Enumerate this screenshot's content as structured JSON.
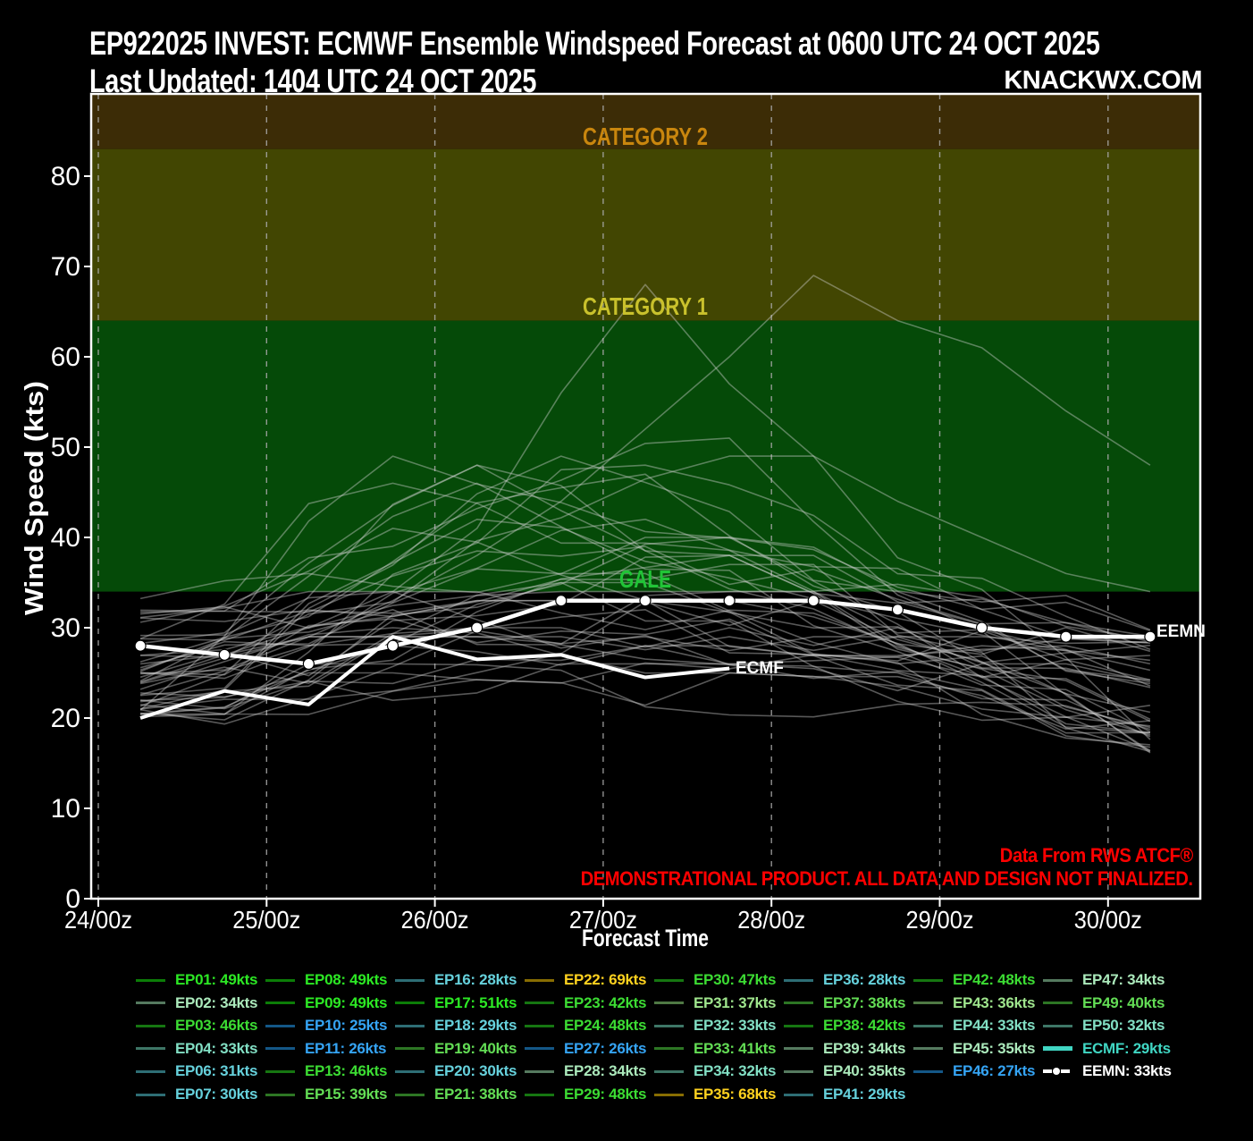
{
  "header": {
    "title_line1": "EP922025 INVEST: ECMWF Ensemble Windspeed Forecast at 0600 UTC 24 OCT 2025",
    "title_line2": "Last Updated: 1404 UTC 24 OCT 2025",
    "brand": "KNACKWX.COM"
  },
  "chart": {
    "y_axis": {
      "label": "Wind Speed (kts)",
      "ticks": [
        0,
        10,
        20,
        30,
        40,
        50,
        60,
        70,
        80
      ]
    },
    "x_axis": {
      "label": "Forecast Time",
      "ticks": [
        "24/00z",
        "25/00z",
        "26/00z",
        "27/00z",
        "28/00z",
        "29/00z",
        "30/00z"
      ]
    },
    "bands": [
      {
        "name": "category-2",
        "label": "CATEGORY 2",
        "label_color": "#c9860e",
        "fill": "#3c2c06",
        "from_kts": 83,
        "to_kts": 89.2
      },
      {
        "name": "category-1",
        "label": "CATEGORY 1",
        "label_color": "#c9c12c",
        "fill": "#424602",
        "from_kts": 64,
        "to_kts": 83
      },
      {
        "name": "gale",
        "label": "GALE",
        "label_color": "#21c437",
        "fill": "#054a08",
        "from_kts": 34,
        "to_kts": 64
      }
    ],
    "disclaimer": {
      "line1": "Data From RWS ATCF®",
      "line2": "DEMONSTRATIONAL PRODUCT. ALL DATA AND DESIGN NOT FINALIZED.",
      "color": "#ff0000"
    }
  },
  "chart_data": {
    "type": "line",
    "title": "EP922025 INVEST: ECMWF Ensemble Windspeed Forecast at 0600 UTC 24 OCT 2025",
    "xlabel": "Forecast Time",
    "ylabel": "Wind Speed (kts)",
    "ylim": [
      0,
      89.2
    ],
    "xtick_labels": [
      "24/00z",
      "25/00z",
      "26/00z",
      "27/00z",
      "28/00z",
      "29/00z",
      "30/00z"
    ],
    "x_times": [
      "24/06z",
      "24/18z",
      "25/06z",
      "25/18z",
      "26/06z",
      "26/18z",
      "27/06z",
      "27/18z",
      "28/06z",
      "28/18z",
      "29/06z",
      "29/18z",
      "30/06z"
    ],
    "series": [
      {
        "name": "EEMN",
        "style": "bold-markers",
        "color": "#ffffff",
        "end_label": "EEMN",
        "values": [
          28,
          27,
          26,
          28,
          30,
          33,
          33,
          33,
          33,
          32,
          30,
          29,
          29
        ]
      },
      {
        "name": "ECMF",
        "style": "bold",
        "color": "#ffffff",
        "end_label": "ECMF",
        "values": [
          20,
          23,
          21.5,
          29,
          26.5,
          27,
          24.5,
          25.5
        ]
      },
      {
        "name": "EP35",
        "style": "ensemble-explicit",
        "values": [
          24,
          27,
          30,
          34,
          41,
          56,
          68,
          57,
          49,
          44,
          40,
          36,
          34
        ]
      },
      {
        "name": "EP22",
        "style": "ensemble-explicit",
        "values": [
          26,
          27,
          29,
          33,
          38,
          44,
          52,
          60,
          69,
          64,
          61,
          54,
          48
        ]
      }
    ],
    "ensemble_peak_kts": [
      {
        "id": "EP01",
        "peak": 49
      },
      {
        "id": "EP02",
        "peak": 34
      },
      {
        "id": "EP03",
        "peak": 46
      },
      {
        "id": "EP04",
        "peak": 33
      },
      {
        "id": "EP06",
        "peak": 31
      },
      {
        "id": "EP07",
        "peak": 30
      },
      {
        "id": "EP08",
        "peak": 49
      },
      {
        "id": "EP09",
        "peak": 49
      },
      {
        "id": "EP10",
        "peak": 25
      },
      {
        "id": "EP11",
        "peak": 26
      },
      {
        "id": "EP13",
        "peak": 46
      },
      {
        "id": "EP15",
        "peak": 39
      },
      {
        "id": "EP16",
        "peak": 28
      },
      {
        "id": "EP17",
        "peak": 51
      },
      {
        "id": "EP18",
        "peak": 29
      },
      {
        "id": "EP19",
        "peak": 40
      },
      {
        "id": "EP20",
        "peak": 30
      },
      {
        "id": "EP21",
        "peak": 38
      },
      {
        "id": "EP22",
        "peak": 69
      },
      {
        "id": "EP23",
        "peak": 42
      },
      {
        "id": "EP24",
        "peak": 48
      },
      {
        "id": "EP27",
        "peak": 26
      },
      {
        "id": "EP28",
        "peak": 34
      },
      {
        "id": "EP29",
        "peak": 48
      },
      {
        "id": "EP30",
        "peak": 47
      },
      {
        "id": "EP31",
        "peak": 37
      },
      {
        "id": "EP32",
        "peak": 33
      },
      {
        "id": "EP33",
        "peak": 41
      },
      {
        "id": "EP34",
        "peak": 32
      },
      {
        "id": "EP35",
        "peak": 68
      },
      {
        "id": "EP36",
        "peak": 28
      },
      {
        "id": "EP37",
        "peak": 38
      },
      {
        "id": "EP38",
        "peak": 42
      },
      {
        "id": "EP39",
        "peak": 34
      },
      {
        "id": "EP40",
        "peak": 35
      },
      {
        "id": "EP41",
        "peak": 29
      },
      {
        "id": "EP42",
        "peak": 48
      },
      {
        "id": "EP43",
        "peak": 36
      },
      {
        "id": "EP44",
        "peak": 33
      },
      {
        "id": "EP45",
        "peak": 35
      },
      {
        "id": "EP46",
        "peak": 27
      },
      {
        "id": "EP47",
        "peak": 34
      },
      {
        "id": "EP49",
        "peak": 40
      },
      {
        "id": "EP50",
        "peak": 32
      }
    ]
  },
  "legend": {
    "units": "kts",
    "columns": [
      [
        {
          "id": "EP01",
          "kts": 49
        },
        {
          "id": "EP02",
          "kts": 34
        },
        {
          "id": "EP03",
          "kts": 46
        },
        {
          "id": "EP04",
          "kts": 33
        },
        {
          "id": "EP06",
          "kts": 31
        },
        {
          "id": "EP07",
          "kts": 30
        }
      ],
      [
        {
          "id": "EP08",
          "kts": 49
        },
        {
          "id": "EP09",
          "kts": 49
        },
        {
          "id": "EP10",
          "kts": 25
        },
        {
          "id": "EP11",
          "kts": 26
        },
        {
          "id": "EP13",
          "kts": 46
        },
        {
          "id": "EP15",
          "kts": 39
        }
      ],
      [
        {
          "id": "EP16",
          "kts": 28
        },
        {
          "id": "EP17",
          "kts": 51
        },
        {
          "id": "EP18",
          "kts": 29
        },
        {
          "id": "EP19",
          "kts": 40
        },
        {
          "id": "EP20",
          "kts": 30
        },
        {
          "id": "EP21",
          "kts": 38
        }
      ],
      [
        {
          "id": "EP22",
          "kts": 69
        },
        {
          "id": "EP23",
          "kts": 42
        },
        {
          "id": "EP24",
          "kts": 48
        },
        {
          "id": "EP27",
          "kts": 26
        },
        {
          "id": "EP28",
          "kts": 34
        },
        {
          "id": "EP29",
          "kts": 48
        }
      ],
      [
        {
          "id": "EP30",
          "kts": 47
        },
        {
          "id": "EP31",
          "kts": 37
        },
        {
          "id": "EP32",
          "kts": 33
        },
        {
          "id": "EP33",
          "kts": 41
        },
        {
          "id": "EP34",
          "kts": 32
        },
        {
          "id": "EP35",
          "kts": 68
        }
      ],
      [
        {
          "id": "EP36",
          "kts": 28
        },
        {
          "id": "EP37",
          "kts": 38
        },
        {
          "id": "EP38",
          "kts": 42
        },
        {
          "id": "EP39",
          "kts": 34
        },
        {
          "id": "EP40",
          "kts": 35
        },
        {
          "id": "EP41",
          "kts": 29
        }
      ],
      [
        {
          "id": "EP42",
          "kts": 48
        },
        {
          "id": "EP43",
          "kts": 36
        },
        {
          "id": "EP44",
          "kts": 33
        },
        {
          "id": "EP45",
          "kts": 35
        },
        {
          "id": "EP46",
          "kts": 27
        }
      ],
      [
        {
          "id": "EP47",
          "kts": 34
        },
        {
          "id": "EP49",
          "kts": 40
        },
        {
          "id": "EP50",
          "kts": 32
        },
        {
          "id": "ECMF",
          "kts": 29,
          "style": "ecmf"
        },
        {
          "id": "EEMN",
          "kts": 33,
          "style": "eemn"
        }
      ]
    ]
  },
  "colors": {
    "background": "#000000",
    "axis": "#ffffff",
    "grid": "#aaaaaa",
    "spaghetti": "#d2d2d2",
    "ecmf": "#40d6c3",
    "eemn": "#ffffff",
    "colormap": [
      {
        "upto": 27,
        "color": "#35a4f4"
      },
      {
        "upto": 31,
        "color": "#66d1dc"
      },
      {
        "upto": 33,
        "color": "#82dfc4"
      },
      {
        "upto": 35,
        "color": "#abe9bb"
      },
      {
        "upto": 37,
        "color": "#9fe58d"
      },
      {
        "upto": 41,
        "color": "#63dd55"
      },
      {
        "upto": 48,
        "color": "#3cdc33"
      },
      {
        "upto": 55,
        "color": "#2ce824"
      },
      {
        "upto": 100,
        "color": "#ffd21f"
      }
    ]
  }
}
